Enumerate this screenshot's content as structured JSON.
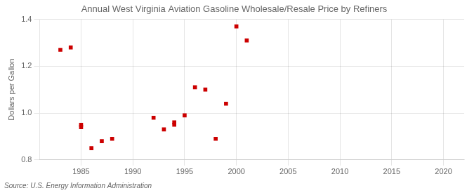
{
  "chart_data": {
    "type": "scatter",
    "title": "Annual West Virginia Aviation Gasoline Wholesale/Resale Price by Refiners",
    "ylabel": "Dollars per Gallon",
    "source": "Source: U.S. Energy Information Administration",
    "x": [
      1983,
      1984,
      1985,
      1985,
      1986,
      1987,
      1988,
      1992,
      1993,
      1994,
      1994,
      1995,
      1996,
      1997,
      1998,
      1999,
      2000,
      2001
    ],
    "values": [
      1.27,
      1.28,
      0.94,
      0.95,
      0.85,
      0.88,
      0.89,
      0.98,
      0.93,
      0.95,
      0.96,
      0.99,
      1.11,
      1.1,
      0.89,
      1.04,
      1.37,
      1.31
    ],
    "color": "#cc0000",
    "marker": "square",
    "xlim": [
      1981,
      2022
    ],
    "ylim": [
      0.8,
      1.4
    ],
    "xticks": [
      1985,
      1990,
      1995,
      2000,
      2005,
      2010,
      2015,
      2020
    ],
    "yticks": [
      0.8,
      {
        "value": 1.0,
        "label": "1.0"
      },
      1.2,
      1.4
    ],
    "grid": true
  }
}
